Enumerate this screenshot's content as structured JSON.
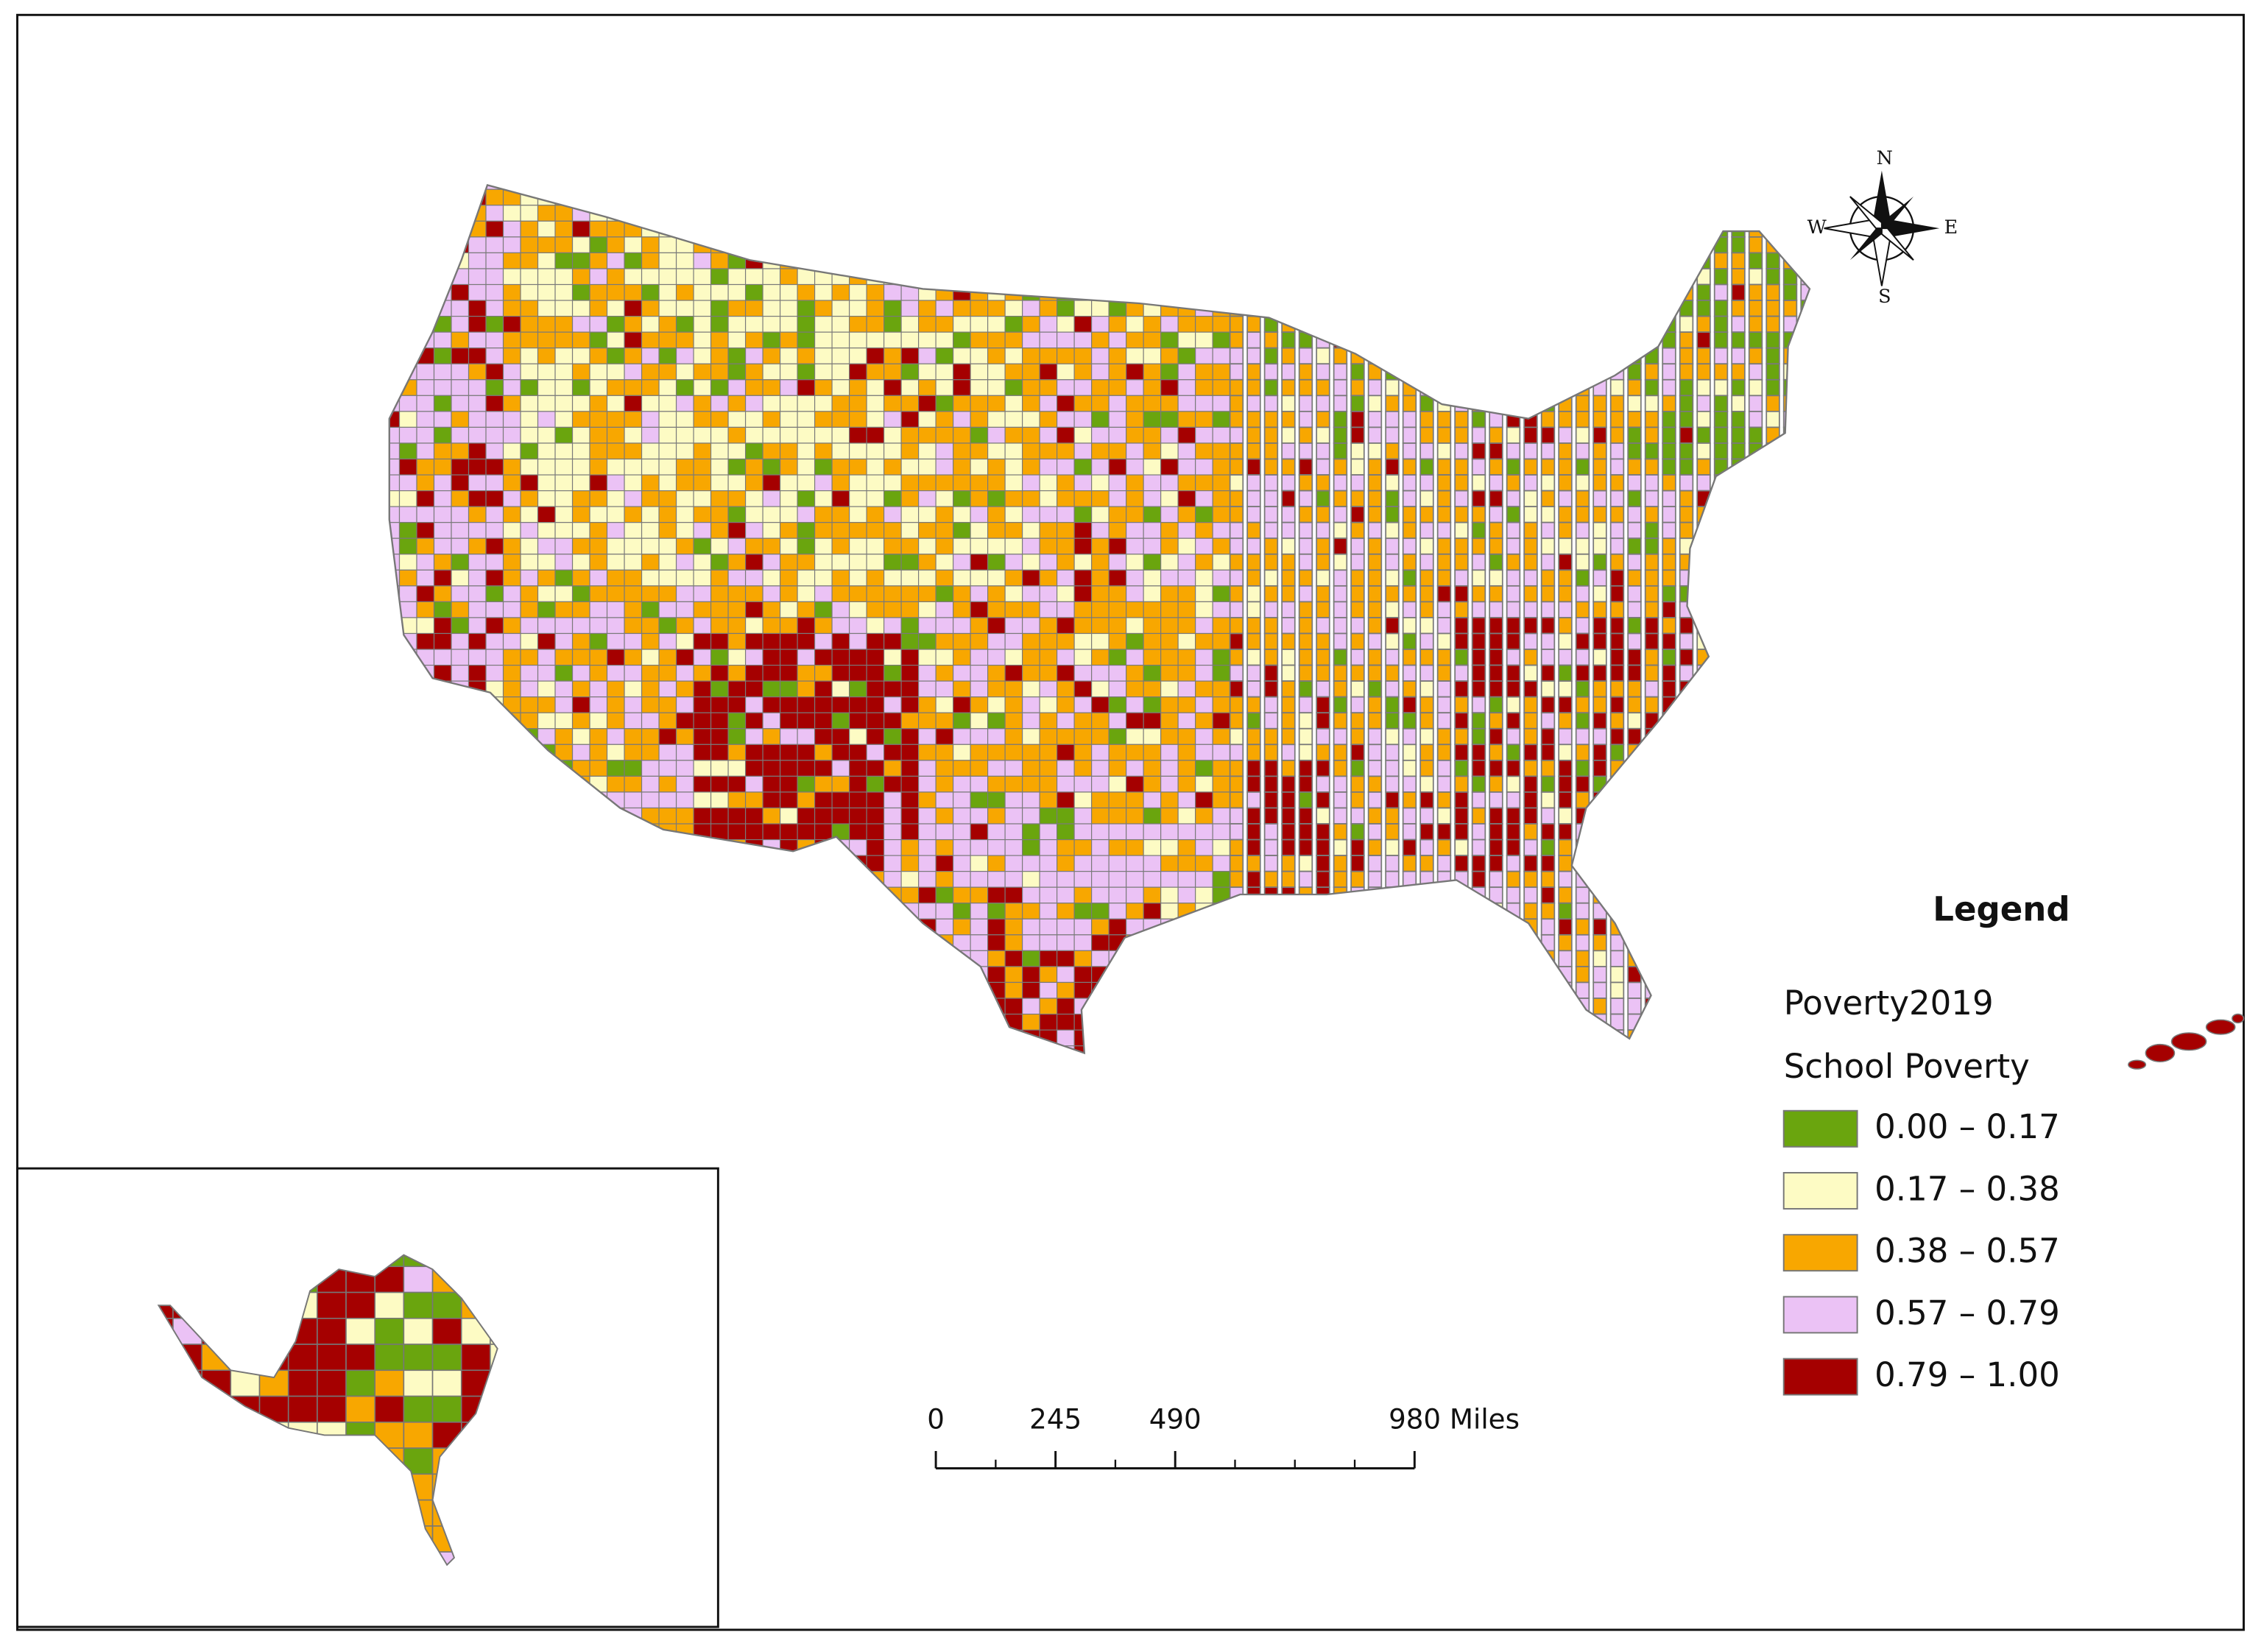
{
  "map": {
    "compass": {
      "north": "N",
      "east": "E",
      "south": "S",
      "west": "W"
    },
    "legend": {
      "title": "Legend",
      "layer": "Poverty2019",
      "field": "School Poverty",
      "classes": [
        {
          "label": "0.00 – 0.17",
          "color": "#6aa50e"
        },
        {
          "label": "0.17 – 0.38",
          "color": "#fdfbc4"
        },
        {
          "label": "0.38 – 0.57",
          "color": "#f8a700"
        },
        {
          "label": "0.57 – 0.79",
          "color": "#ebc2f5"
        },
        {
          "label": "0.79 – 1.00",
          "color": "#a50000"
        }
      ]
    },
    "scale_bar": {
      "ticks": [
        {
          "value": 0,
          "label": "0"
        },
        {
          "value": 245,
          "label": "245"
        },
        {
          "value": 490,
          "label": "490"
        },
        {
          "value": 980,
          "label": "980 Miles"
        }
      ]
    }
  }
}
